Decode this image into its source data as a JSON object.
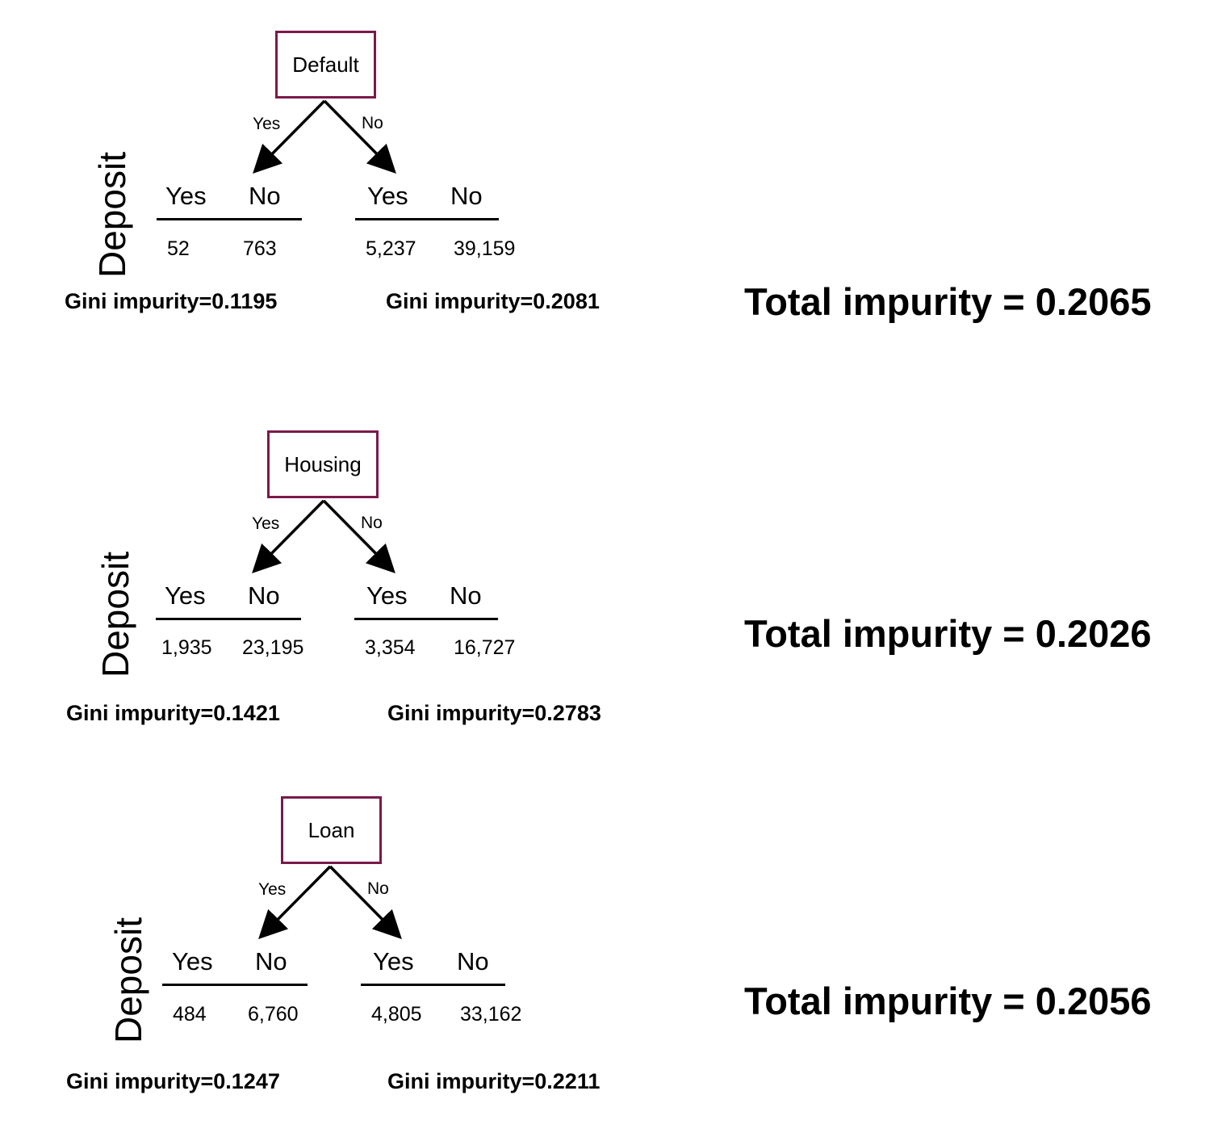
{
  "splits": [
    {
      "feature": "Default",
      "branch_yes": "Yes",
      "branch_no": "No",
      "target_label": "Deposit",
      "left": {
        "head_yes": "Yes",
        "head_no": "No",
        "count_yes": "52",
        "count_no": "763",
        "gini": "Gini impurity=0.1195"
      },
      "right": {
        "head_yes": "Yes",
        "head_no": "No",
        "count_yes": "5,237",
        "count_no": "39,159",
        "gini": "Gini impurity=0.2081"
      },
      "total": "Total impurity = 0.2065"
    },
    {
      "feature": "Housing",
      "branch_yes": "Yes",
      "branch_no": "No",
      "target_label": "Deposit",
      "left": {
        "head_yes": "Yes",
        "head_no": "No",
        "count_yes": "1,935",
        "count_no": "23,195",
        "gini": "Gini impurity=0.1421"
      },
      "right": {
        "head_yes": "Yes",
        "head_no": "No",
        "count_yes": "3,354",
        "count_no": "16,727",
        "gini": "Gini impurity=0.2783"
      },
      "total": "Total impurity = 0.2026"
    },
    {
      "feature": "Loan",
      "branch_yes": "Yes",
      "branch_no": "No",
      "target_label": "Deposit",
      "left": {
        "head_yes": "Yes",
        "head_no": "No",
        "count_yes": "484",
        "count_no": "6,760",
        "gini": "Gini impurity=0.1247"
      },
      "right": {
        "head_yes": "Yes",
        "head_no": "No",
        "count_yes": "4,805",
        "count_no": "33,162",
        "gini": "Gini impurity=0.2211"
      },
      "total": "Total impurity = 0.2056"
    }
  ],
  "colors": {
    "box_border": "#7b1a4a"
  }
}
